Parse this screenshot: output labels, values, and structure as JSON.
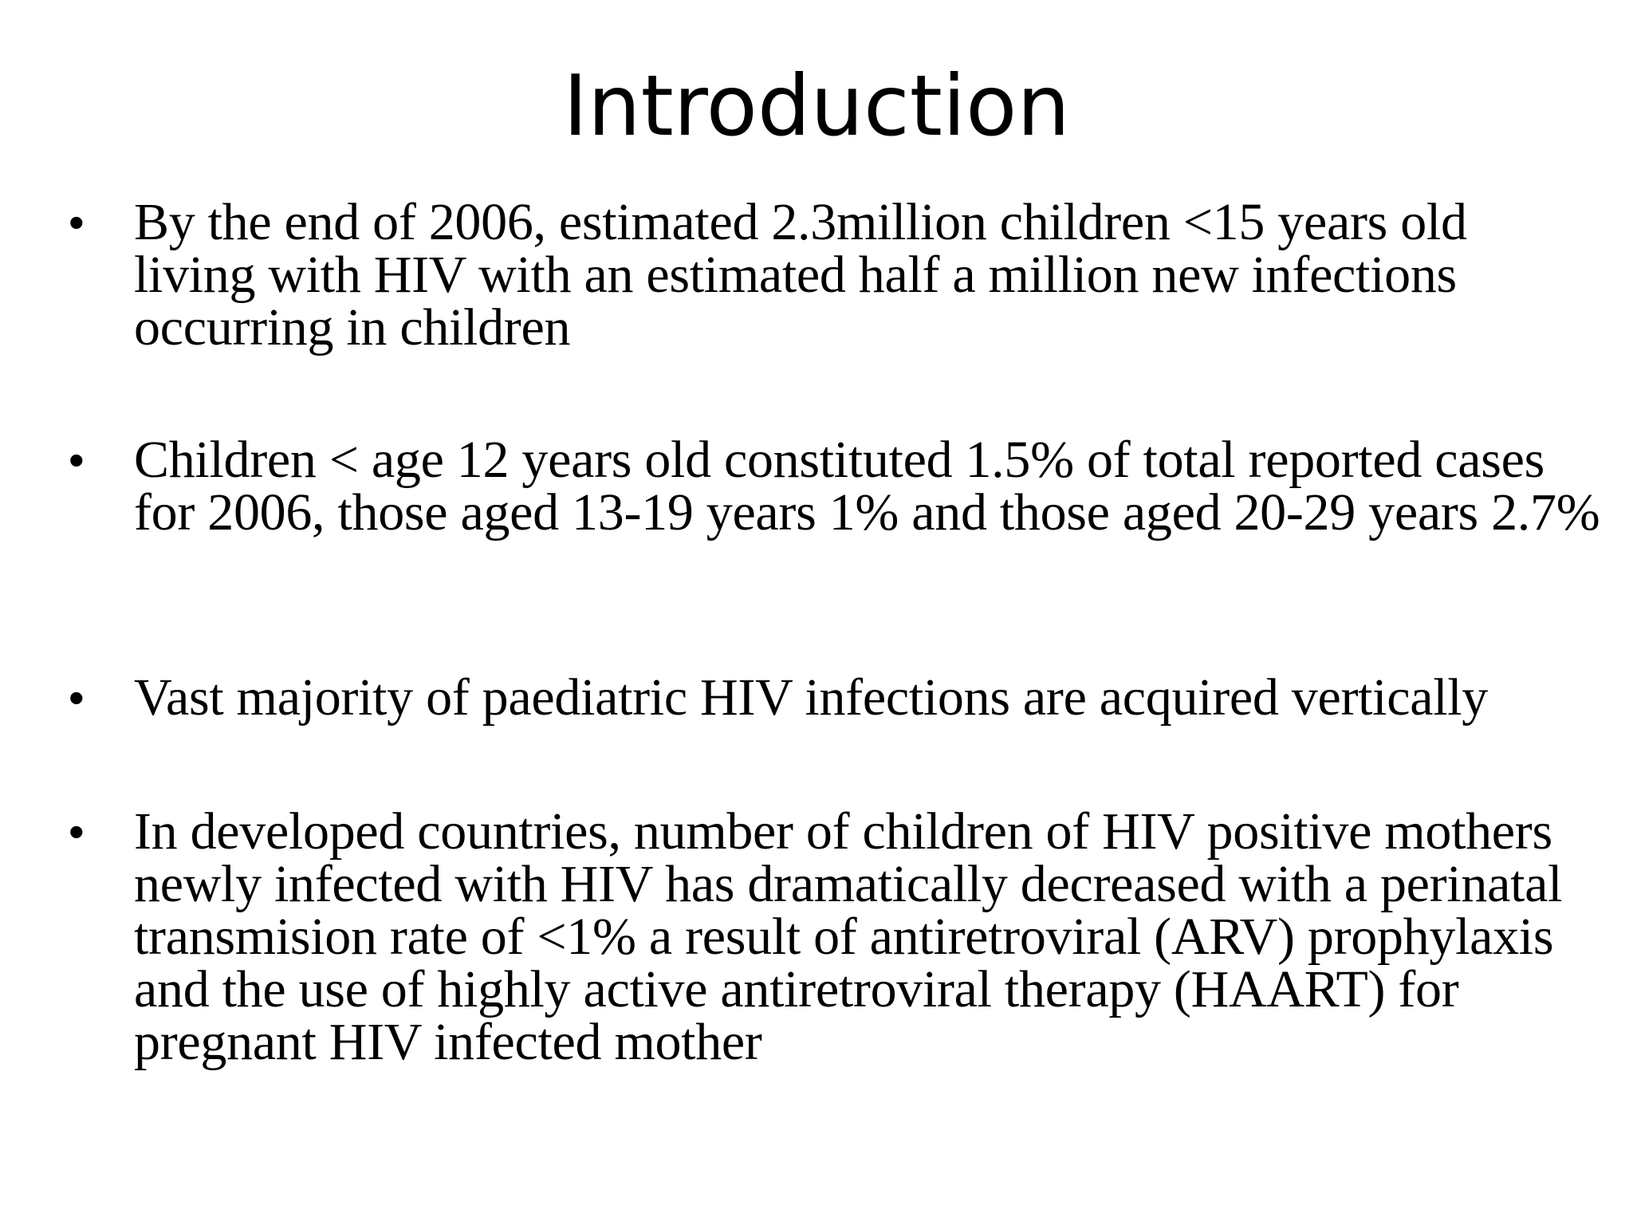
{
  "slide": {
    "title": "Introduction",
    "bullets": [
      {
        "symbol": "•",
        "text": "By the end of 2006, estimated 2.3million children <15 years old living with HIV with an estimated half a million new infections occurring in children"
      },
      {
        "symbol": "•",
        "text": "Children < age 12 years old constituted 1.5% of total reported cases for 2006, those aged 13-19 years 1% and those aged 20-29 years 2.7%"
      },
      {
        "symbol": "•",
        "text": "Vast majority of paediatric HIV infections are acquired vertically"
      },
      {
        "symbol": "•",
        "text": "In developed countries, number of children of HIV positive mothers newly infected with HIV has dramatically decreased with a perinatal transmision rate of <1% a result of antiretroviral (ARV) prophylaxis and  the use of highly active antiretroviral therapy (HAART) for pregnant HIV infected mother"
      }
    ]
  }
}
